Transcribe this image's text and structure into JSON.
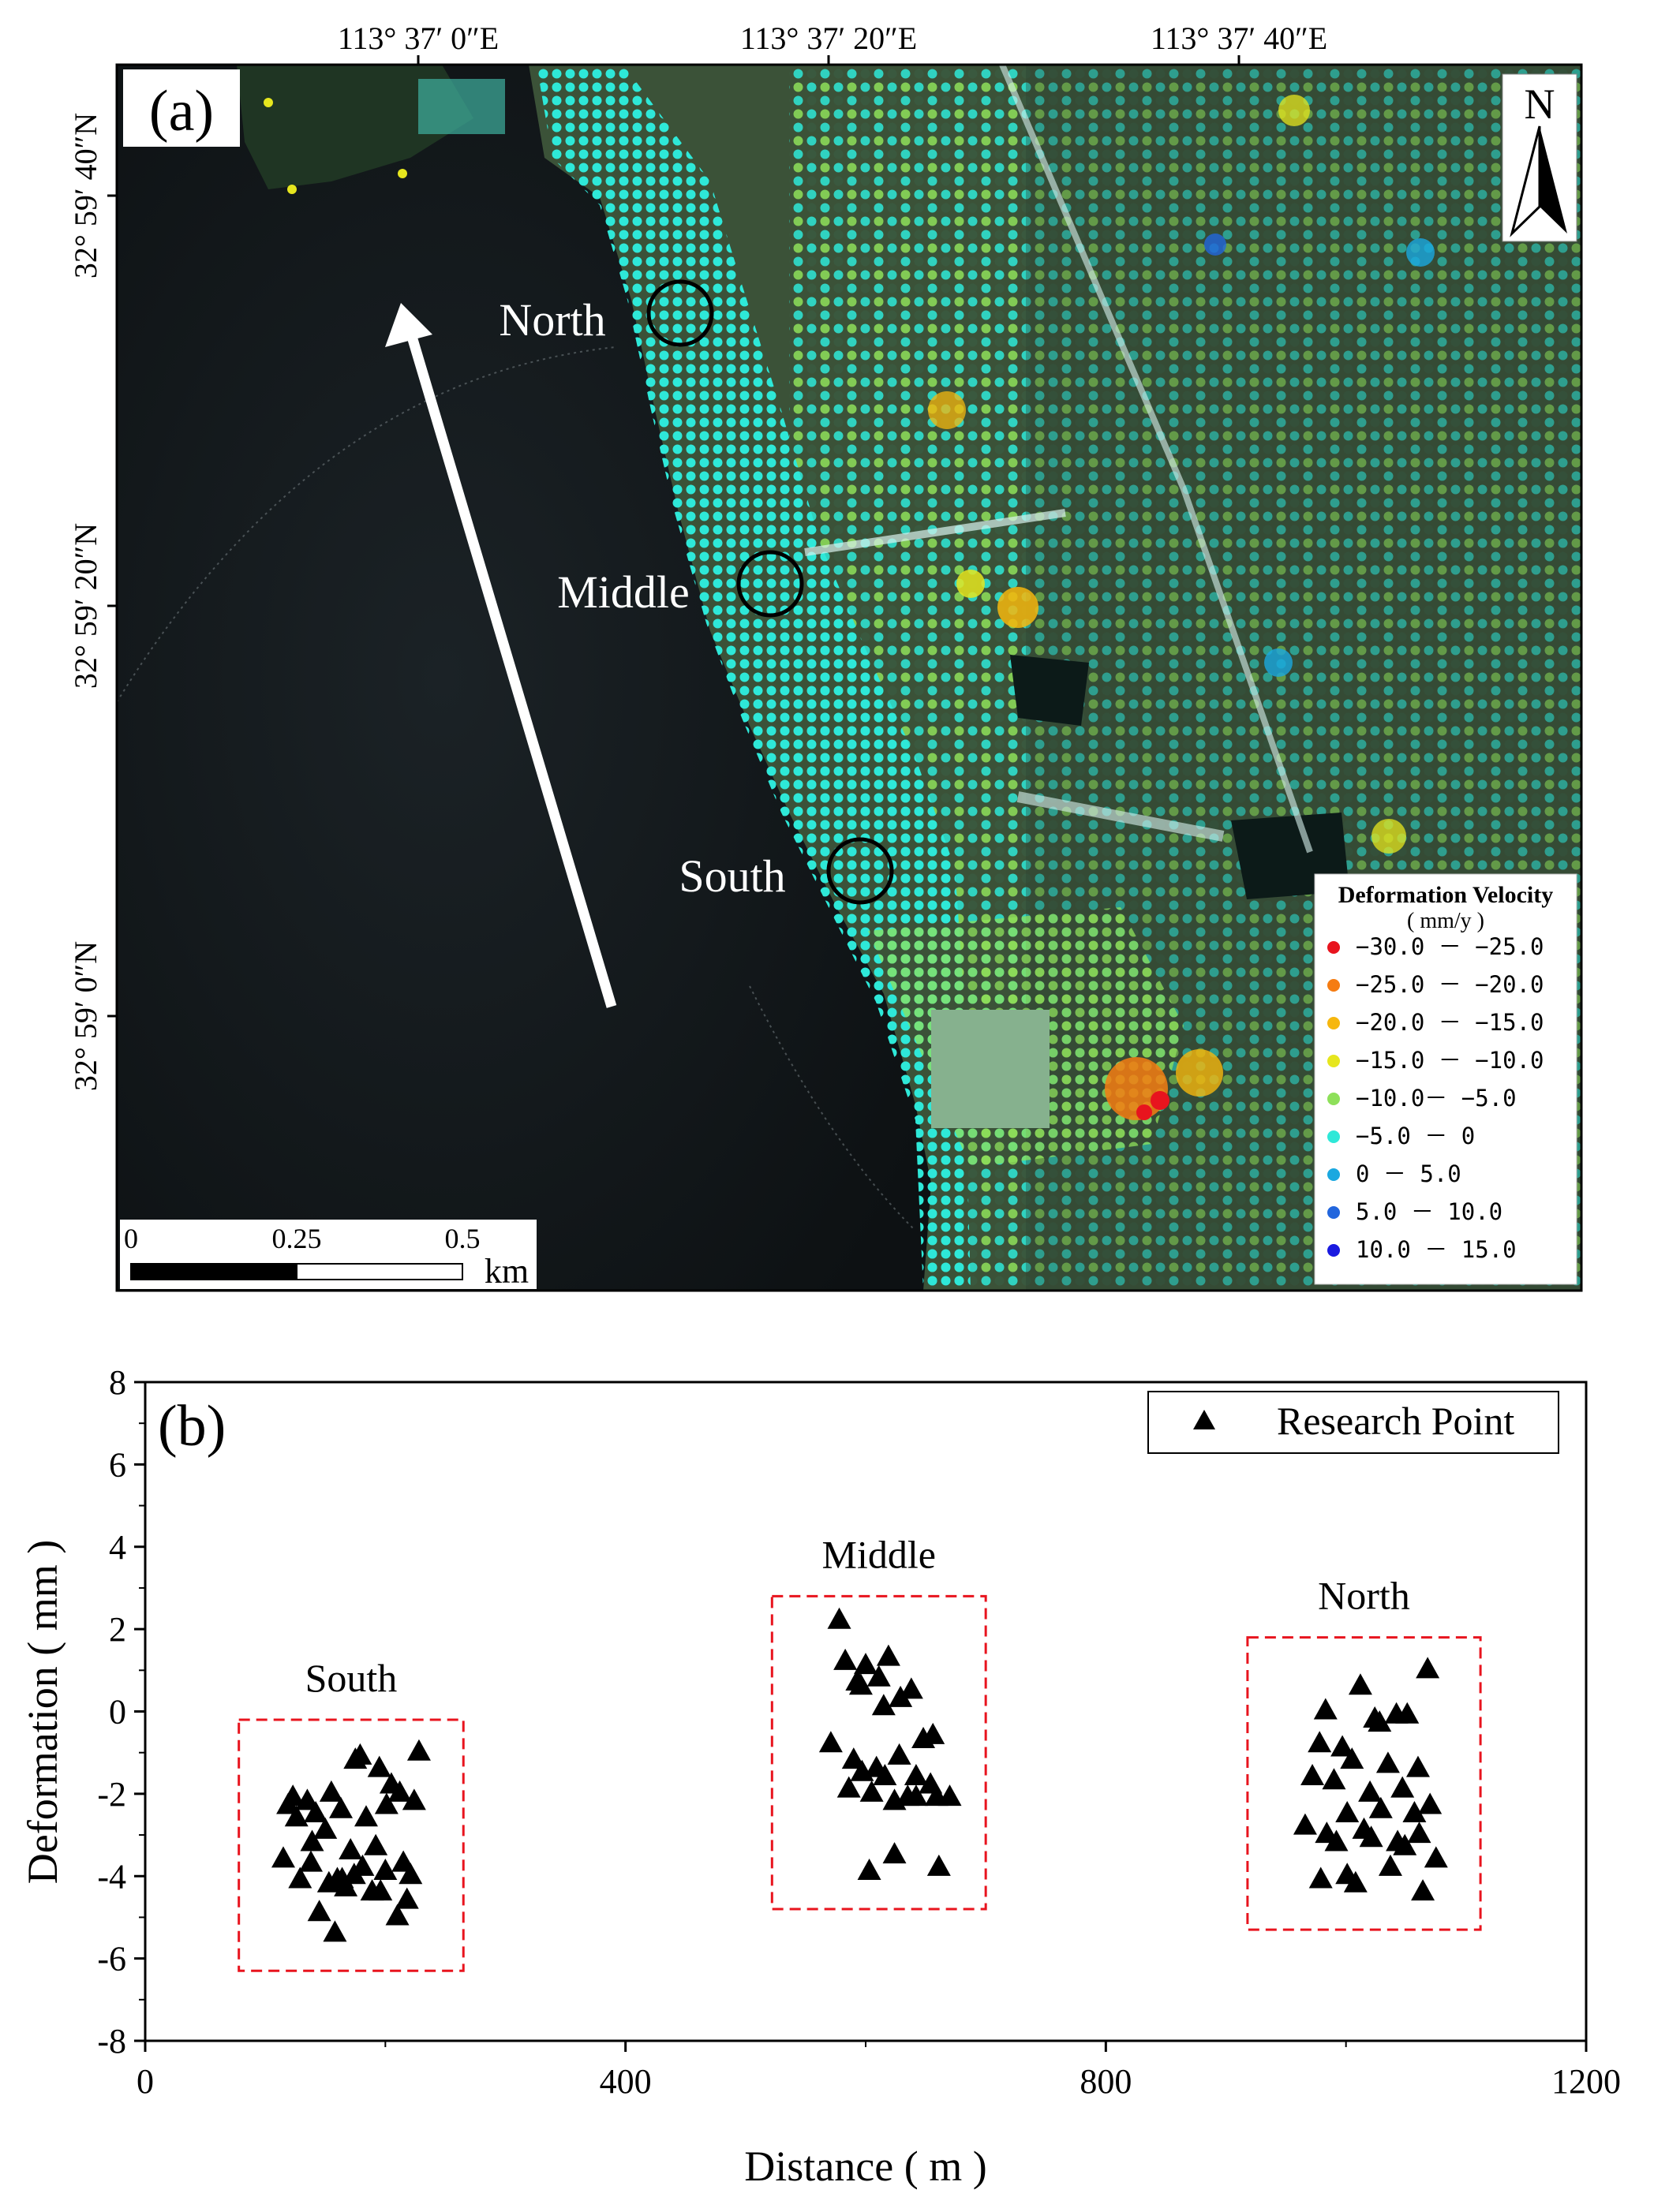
{
  "panel_a": {
    "label": "(a)",
    "top_ticks": [
      "113°  37′ 0″E",
      "113°  37′ 20″E",
      "113°  37′ 40″E"
    ],
    "left_ticks": [
      "32°  59′ 40″N",
      "32°  59′ 20″N",
      "32°  59′ 0″N"
    ],
    "north_label": "N",
    "sites": [
      "North",
      "Middle",
      "South"
    ],
    "scale_bar": {
      "ticks": [
        "0",
        "0.25",
        "0.5"
      ],
      "unit": "km"
    },
    "legend": {
      "title_line1": "Deformation Velocity",
      "title_line2": "( mm/y )",
      "items": [
        {
          "label": "−30.0 － −25.0",
          "color": "#e8141e"
        },
        {
          "label": "−25.0 － −20.0",
          "color": "#f57c12"
        },
        {
          "label": "−20.0 － −15.0",
          "color": "#f6b70e"
        },
        {
          "label": "−15.0 － −10.0",
          "color": "#e6e61e"
        },
        {
          "label": "−10.0－ −5.0",
          "color": "#8ee05a"
        },
        {
          "label": "−5.0 － 0",
          "color": "#2ee8d8"
        },
        {
          "label": "0 － 5.0",
          "color": "#1aa8e0"
        },
        {
          "label": "5.0 － 10.0",
          "color": "#2266dd"
        },
        {
          "label": "10.0 － 15.0",
          "color": "#1a1ae0"
        }
      ]
    }
  },
  "panel_b": {
    "label": "(b)",
    "legend_label": "Research Point",
    "group_labels": [
      "South",
      "Middle",
      "North"
    ],
    "colors": {
      "marker": "#000000",
      "box": "#e8141e"
    }
  },
  "chart_data": {
    "type": "scatter",
    "xlabel": "Distance ( m )",
    "ylabel": "Deformation ( mm )",
    "xlim": [
      0,
      1200
    ],
    "ylim": [
      -8,
      8
    ],
    "xticks": [
      0,
      400,
      800,
      1200
    ],
    "yticks": [
      -8,
      -6,
      -4,
      -2,
      0,
      2,
      4,
      6,
      8
    ],
    "legend_position": "top-right",
    "series": [
      {
        "name": "Research Point",
        "marker": "triangle",
        "x": [
          228,
          123,
          135,
          155,
          175,
          195,
          212,
          119,
          142,
          163,
          184,
          205,
          126,
          150,
          171,
          192,
          215,
          115,
          138,
          160,
          181,
          200,
          221,
          129,
          153,
          174,
          196,
          218,
          145,
          167,
          189,
          210,
          158,
          179,
          201,
          224,
          139,
          164,
          583,
          600,
          619,
          638,
          593,
          611,
          629,
          648,
          571,
          590,
          609,
          628,
          656,
          597,
          616,
          635,
          654,
          670,
          586,
          605,
          624,
          642,
          661,
          603,
          624,
          578,
          596,
          615,
          642,
          659,
          1068,
          983,
          1012,
          1042,
          997,
          1024,
          1051,
          978,
          1005,
          1035,
          1060,
          972,
          990,
          1020,
          1047,
          1070,
          1001,
          1029,
          1057,
          966,
          984,
          1015,
          1043,
          1061,
          992,
          1021,
          1049,
          1075,
          979,
          1008,
          1037,
          1064,
          1001,
          1028
        ],
        "y": [
          -1.0,
          -2.1,
          -2.2,
          -2.0,
          -1.2,
          -1.4,
          -2.0,
          -2.3,
          -2.5,
          -2.4,
          -2.6,
          -1.8,
          -2.6,
          -2.9,
          -3.4,
          -3.3,
          -3.7,
          -3.6,
          -3.7,
          -4.1,
          -3.8,
          -3.9,
          -4.0,
          -4.1,
          -4.2,
          -4.0,
          -4.4,
          -4.6,
          -4.9,
          -4.3,
          -4.4,
          -5.0,
          -5.4,
          -1.1,
          -2.3,
          -2.2,
          -3.2,
          -4.1,
          1.2,
          1.1,
          1.3,
          0.5,
          0.7,
          0.8,
          0.3,
          -0.7,
          -0.8,
          -1.2,
          -1.4,
          -1.1,
          -0.6,
          -1.5,
          -1.6,
          -2.1,
          -1.8,
          -2.1,
          -1.9,
          -2.0,
          -2.2,
          -2.1,
          -3.8,
          -3.9,
          -3.5,
          2.2,
          0.6,
          0.1,
          -1.6,
          -2.1,
          1.0,
          0.0,
          0.6,
          -0.1,
          -0.9,
          -0.2,
          -0.1,
          -0.8,
          -1.2,
          -1.3,
          -1.4,
          -1.6,
          -1.7,
          -2.0,
          -1.9,
          -2.3,
          -2.5,
          -2.4,
          -2.5,
          -2.8,
          -3.0,
          -2.9,
          -3.2,
          -3.0,
          -3.2,
          -3.1,
          -3.3,
          -3.6,
          -4.1,
          -4.2,
          -3.8,
          -4.4,
          -4.0,
          -0.3
        ]
      }
    ],
    "groups": [
      {
        "name": "South",
        "x_range": [
          78,
          265
        ],
        "y_range": [
          -6.3,
          -0.2
        ]
      },
      {
        "name": "Middle",
        "x_range": [
          522,
          700
        ],
        "y_range": [
          -4.8,
          2.8
        ]
      },
      {
        "name": "North",
        "x_range": [
          918,
          1112
        ],
        "y_range": [
          -5.3,
          1.8
        ]
      }
    ]
  }
}
